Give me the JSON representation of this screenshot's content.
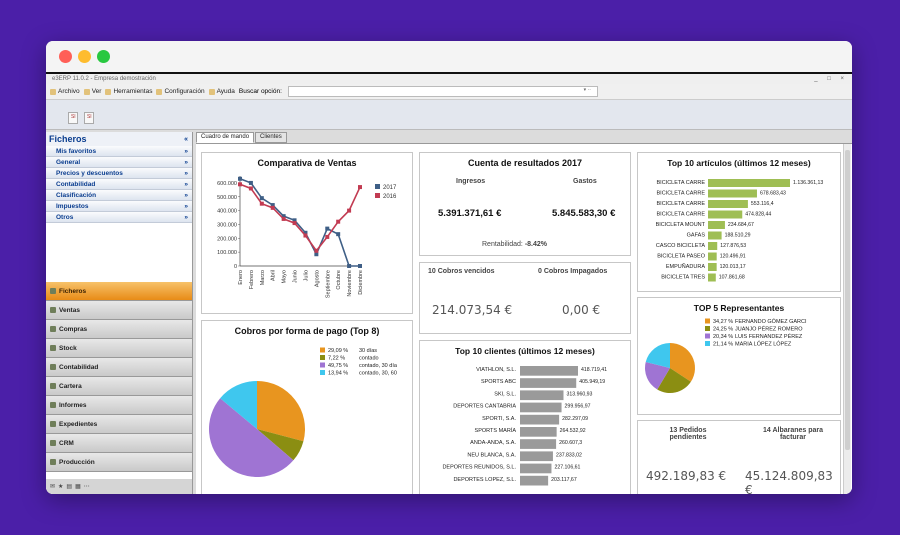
{
  "window": {
    "title": "e3ERP 11.0.2 - Empresa demostración",
    "controls": "_ □ ×"
  },
  "menu": [
    {
      "label": "Archivo"
    },
    {
      "label": "Ver"
    },
    {
      "label": "Herramientas"
    },
    {
      "label": "Configuración"
    },
    {
      "label": "Ayuda"
    }
  ],
  "search": {
    "label": "Buscar opción:",
    "value": ""
  },
  "toolbar": {
    "btn1": "Sl",
    "btn2": "Sl"
  },
  "sidebar": {
    "title": "Ficheros",
    "collapse": "«",
    "sections": [
      "Mis favoritos",
      "General",
      "Precios y descuentos",
      "Contabilidad",
      "Clasificación",
      "Impuestos",
      "Otros"
    ],
    "nav": [
      "Ficheros",
      "Ventas",
      "Compras",
      "Stock",
      "Contabilidad",
      "Cartera",
      "Informes",
      "Expedientes",
      "CRM",
      "Producción"
    ]
  },
  "tabs": [
    {
      "label": "Cuadro de mando"
    },
    {
      "label": "Clientes"
    }
  ],
  "colors": {
    "accent": "#e88b17",
    "sales2017": "#3f5f86",
    "sales2016": "#c23b52",
    "bar": "#9fbe54",
    "clientBar": "#9a9a9a"
  },
  "ventas": {
    "title": "Comparativa de Ventas",
    "chart_data": {
      "type": "line",
      "title": "Comparativa de Ventas",
      "categories": [
        "Enero",
        "Febrero",
        "Marzo",
        "Abril",
        "Mayo",
        "Junio",
        "Julio",
        "Agosto",
        "Septiembre",
        "Octubre",
        "Noviembre",
        "Diciembre"
      ],
      "series": [
        {
          "name": "2017",
          "values": [
            630000,
            600000,
            490000,
            440000,
            360000,
            330000,
            240000,
            85000,
            270000,
            230000,
            0,
            0
          ]
        },
        {
          "name": "2016",
          "values": [
            590000,
            560000,
            450000,
            420000,
            340000,
            310000,
            220000,
            110000,
            210000,
            320000,
            400000,
            570000
          ]
        }
      ],
      "yticks": [
        "0",
        "100.000",
        "200.000",
        "300.000",
        "400.000",
        "500.000",
        "600.000"
      ],
      "ylim": [
        0,
        650000
      ],
      "legend": "right"
    }
  },
  "resultados": {
    "title": "Cuenta de resultados 2017",
    "ingresos_label": "Ingresos",
    "gastos_label": "Gastos",
    "ingresos": "5.391.371,61 €",
    "gastos": "5.845.583,30 €",
    "rentabilidad_label": "Rentabilidad:",
    "rentabilidad": "-8.42%"
  },
  "cobros": {
    "vencidos_label": "10  Cobros vencidos",
    "impagados_label": "0  Cobros Impagados",
    "vencidos": "214.073,54 €",
    "impagados": "0,00 €"
  },
  "articulos": {
    "title": "Top 10 artículos (últimos 12 meses)",
    "chart_data": {
      "type": "bar",
      "categories": [
        "BICICLETA CARRE",
        "BICICLETA CARRE",
        "BICICLETA CARRE",
        "BICICLETA CARRE",
        "BICICLETA MOUNT",
        "GAFAS",
        "CASCO BICICLETA",
        "BICICLETA PASEO",
        "EMPUÑADURA",
        "BICICLETA TRES"
      ],
      "values": [
        1136361.13,
        678683.43,
        553116.4,
        474828.44,
        234684.67,
        188510.29,
        127876.53,
        120496.91,
        120013.17,
        107861.68
      ],
      "labels": [
        "1.136.361,13",
        "678.683,43",
        "553.116,4",
        "474.828,44",
        "234.684,67",
        "188.510,29",
        "127.876,53",
        "120.496,91",
        "120.013,17",
        "107.861,68"
      ]
    }
  },
  "formapago": {
    "title": "Cobros por forma de pago (Top 8)",
    "chart_data": {
      "type": "pie",
      "slices": [
        {
          "pct": "29,09 %",
          "value": 29.09,
          "label": "30 días",
          "color": "#e8951f"
        },
        {
          "pct": "7,22 %",
          "value": 7.22,
          "label": "contado",
          "color": "#8b8e12"
        },
        {
          "pct": "49,75 %",
          "value": 49.75,
          "label": "contado, 30 día",
          "color": "#9f74d3"
        },
        {
          "pct": "13,94 %",
          "value": 13.94,
          "label": "contado, 30, 60",
          "color": "#3fc7ee"
        }
      ]
    }
  },
  "clientes": {
    "title": "Top 10 clientes (últimos 12 meses)",
    "chart_data": {
      "type": "bar",
      "categories": [
        "VIATHLON, S.L.",
        "SPORTS ABC",
        "SKI, S.L.",
        "DEPORTES CANTABRIA",
        "SPORTI, S.A.",
        "SPORTS MARÍA",
        "ANDA-ANDA, S.A.",
        "NEU BLANCA, S.A.",
        "DEPORTES REUNIDOS, S.L.",
        "DEPORTES LOPEZ, S.L."
      ],
      "values": [
        418719.41,
        405949.19,
        313960.93,
        299956.97,
        282297.09,
        264532.92,
        260607.3,
        237833.02,
        227106.61,
        203117.67
      ],
      "labels": [
        "418.719,41",
        "405.949,19",
        "313.960,93",
        "299.956,97",
        "282.297,09",
        "264.532,92",
        "260.607,3",
        "237.833,02",
        "227.106,61",
        "203.117,67"
      ]
    }
  },
  "representantes": {
    "title": "TOP 5 Representantes",
    "chart_data": {
      "type": "pie",
      "slices": [
        {
          "pct": "34,27 %",
          "value": 34.27,
          "label": "FERNANDO GÓMEZ GARCI",
          "color": "#e8951f"
        },
        {
          "pct": "24,25 %",
          "value": 24.25,
          "label": "JUANJO PÉREZ ROMERO",
          "color": "#8b8e12"
        },
        {
          "pct": "20,34 %",
          "value": 20.34,
          "label": "LUIS FERNANDEZ PÉREZ",
          "color": "#9f74d3"
        },
        {
          "pct": "21,14 %",
          "value": 21.14,
          "label": "MARIA LÓPEZ LÓPEZ",
          "color": "#3fc7ee"
        }
      ]
    }
  },
  "pedidos": {
    "pedidos_label1": "13  Pedidos",
    "pedidos_label2": "pendientes",
    "albaranes_label1": "14  Albaranes para",
    "albaranes_label2": "facturar",
    "pedidos": "492.189,83 €",
    "albaranes": "45.124.809,83 €"
  }
}
